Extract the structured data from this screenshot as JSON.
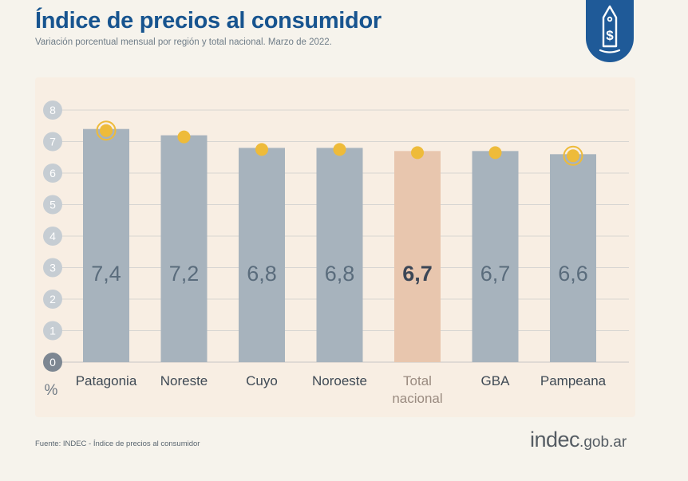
{
  "header": {
    "title": "Índice de precios al consumidor",
    "subtitle": "Variación porcentual mensual por región y total nacional. Marzo de 2022."
  },
  "badge": {
    "icon": "price-tag-dollar-icon"
  },
  "footer": {
    "source": "Fuente: INDEC - Índice de precios al consumidor",
    "logo_main": "indec",
    "logo_suffix": ".gob.ar"
  },
  "chart_data": {
    "type": "bar",
    "categories": [
      "Patagonia",
      "Noreste",
      "Cuyo",
      "Noroeste",
      "Total nacional",
      "GBA",
      "Pampeana"
    ],
    "category_lines": [
      [
        "Patagonia"
      ],
      [
        "Noreste"
      ],
      [
        "Cuyo"
      ],
      [
        "Noroeste"
      ],
      [
        "Total",
        "nacional"
      ],
      [
        "GBA"
      ],
      [
        "Pampeana"
      ]
    ],
    "values": [
      7.4,
      7.2,
      6.8,
      6.8,
      6.7,
      6.7,
      6.6
    ],
    "value_labels": [
      "7,4",
      "7,2",
      "6,8",
      "6,8",
      "6,7",
      "6,7",
      "6,6"
    ],
    "highlight_index": 4,
    "ringed_markers": [
      0,
      6
    ],
    "ylabel": "%",
    "ylim": [
      0,
      8
    ],
    "yticks": [
      "0",
      "1",
      "2",
      "3",
      "4",
      "5",
      "6",
      "7",
      "8"
    ],
    "grid": true,
    "colors": {
      "bar": "#a7b3bd",
      "highlight_bar": "#e8c6ae",
      "marker": "#eebb3a",
      "value_text": "#5a6c7c",
      "highlight_value_text": "#3b4656",
      "tick_badge": "#c6cdd3",
      "zero_badge": "#7d8792",
      "grid": "#d7d5d2",
      "highlight_label": "#9a8b80",
      "label": "#3f4a55"
    }
  }
}
